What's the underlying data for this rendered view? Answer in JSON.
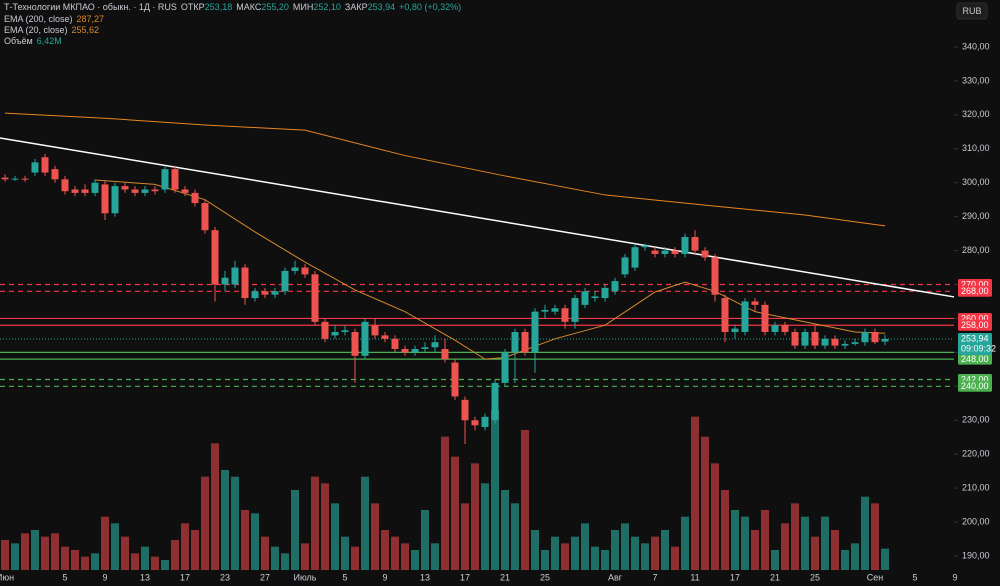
{
  "chart_data": {
    "type": "candlestick",
    "header": {
      "symbol": "Т-Технологии МКПАО · обыкн. · 1Д · RUS",
      "open_label": "ОТКР",
      "open": "253,18",
      "high_label": "МАКС",
      "high": "255,20",
      "low_label": "МИН",
      "low": "252,10",
      "close_label": "ЗАКР",
      "close": "253,94",
      "change": "+0,80 (+0,32%)"
    },
    "currency": "RUB",
    "categories": [
      "Июн",
      null,
      null,
      null,
      null,
      null,
      "5",
      null,
      null,
      null,
      "9",
      null,
      null,
      null,
      "13",
      null,
      null,
      null,
      "17",
      null,
      null,
      null,
      "23",
      null,
      null,
      null,
      "27",
      null,
      null,
      null,
      "Июль",
      null,
      null,
      null,
      "5",
      null,
      null,
      null,
      "9",
      null,
      null,
      null,
      "13",
      null,
      null,
      null,
      "17",
      null,
      null,
      null,
      "21",
      null,
      null,
      null,
      "25",
      null,
      null,
      null,
      null,
      null,
      null,
      "Авг",
      null,
      null,
      null,
      "7",
      null,
      null,
      null,
      "11",
      null,
      null,
      null,
      "17",
      null,
      null,
      null,
      "21",
      null,
      null,
      null,
      "25",
      null,
      null,
      null,
      null,
      null,
      "Сен",
      null,
      null,
      null,
      "5",
      null,
      null,
      null,
      "9"
    ],
    "open": [
      301.5,
      301,
      301.2,
      303,
      307.5,
      304,
      301,
      298,
      298,
      297,
      299.5,
      291,
      299,
      298,
      297,
      298,
      298,
      304,
      298,
      297,
      294,
      286,
      270,
      270,
      275,
      266,
      268,
      267,
      268,
      274,
      275,
      273,
      259,
      255,
      256,
      256,
      249,
      258,
      255,
      254,
      251,
      250,
      251,
      251.5,
      251,
      247,
      236,
      230,
      228,
      230,
      241,
      250,
      256,
      250,
      262,
      262,
      263,
      259,
      264,
      266,
      266,
      268,
      273,
      275,
      281,
      280,
      279,
      280,
      279,
      284,
      280,
      278,
      266,
      256,
      256,
      265,
      264,
      256,
      258,
      256,
      252,
      256,
      252,
      254,
      252,
      252.5,
      253,
      256,
      253.18,
      null,
      null,
      null,
      null,
      null,
      null,
      null
    ],
    "high": [
      302.5,
      302,
      302,
      307,
      308.5,
      305,
      302,
      299,
      299.5,
      301,
      300.5,
      300,
      300,
      299,
      299,
      299,
      305,
      305,
      299,
      298,
      295,
      287,
      274,
      277,
      276,
      269,
      269,
      269,
      275,
      277,
      276,
      274,
      260,
      258,
      258,
      257,
      260,
      260,
      256,
      255,
      252,
      252,
      253,
      255,
      254,
      248,
      237,
      231,
      232,
      242,
      251,
      257,
      257,
      263,
      264,
      264,
      264,
      267,
      269,
      268,
      270,
      272,
      279,
      282,
      282,
      281,
      281,
      281,
      285,
      286,
      281,
      279,
      267,
      258,
      266,
      266,
      265,
      259,
      259,
      257,
      257,
      258,
      255,
      255,
      253.5,
      254,
      257,
      257,
      255.2,
      null,
      null,
      null,
      null,
      null,
      null,
      null
    ],
    "low": [
      300.3,
      300.5,
      300.3,
      302,
      302,
      300,
      296.5,
      296,
      296,
      296,
      289,
      290,
      297,
      296,
      296,
      296.5,
      297,
      297,
      296,
      293,
      285,
      265,
      268,
      269,
      264,
      265,
      266,
      266,
      267,
      273,
      272,
      258,
      253,
      254,
      255,
      241,
      248,
      254,
      253,
      250,
      249,
      249,
      250,
      250,
      247,
      236,
      223,
      227,
      227,
      229,
      240,
      241,
      249,
      244,
      260,
      261,
      257,
      257,
      263,
      265,
      265,
      267,
      272,
      274,
      280,
      278,
      278,
      278,
      278,
      279,
      277,
      265,
      253,
      254,
      255,
      262,
      255,
      255,
      255,
      251,
      251,
      251,
      251,
      251,
      251,
      252,
      252,
      252.5,
      252.1,
      null,
      null,
      null,
      null,
      null,
      null,
      null
    ],
    "close": [
      301,
      301.2,
      301,
      306,
      303,
      301,
      297.5,
      297,
      297,
      300,
      291,
      299,
      298,
      297,
      298,
      297.5,
      304,
      298,
      297,
      294,
      286,
      270,
      272,
      275,
      266,
      268,
      267,
      268,
      274,
      275,
      273,
      259,
      254,
      256,
      256.5,
      249,
      259,
      255,
      254,
      251,
      250,
      251,
      251.5,
      253,
      248,
      237,
      230,
      228.5,
      231,
      241,
      250,
      256,
      250,
      262,
      262.5,
      263,
      259,
      266,
      268,
      266.5,
      269,
      271,
      278,
      281,
      281.5,
      279,
      280,
      279,
      284,
      280,
      278,
      267,
      256,
      257,
      265,
      264,
      256,
      258,
      256,
      252,
      256,
      252,
      254,
      252,
      252.5,
      253,
      256,
      253,
      253.94,
      null,
      null,
      null,
      null,
      null,
      null,
      null
    ],
    "up_color": "#26a69a",
    "down_color": "#ef5350",
    "volume": {
      "name": "Объём",
      "value_label": "6,42M",
      "vlim": [
        0,
        60
      ],
      "values": [
        9,
        8,
        11,
        12,
        10,
        11,
        7,
        6,
        4,
        5,
        16,
        14,
        10,
        5,
        7,
        4,
        3,
        9,
        14,
        12,
        28,
        38,
        30,
        28,
        18,
        17,
        10,
        7,
        5,
        24,
        8,
        28,
        26,
        20,
        10,
        7,
        28,
        20,
        12,
        10,
        8,
        6,
        18,
        8,
        40,
        34,
        20,
        32,
        26,
        48,
        24,
        20,
        42,
        12,
        6,
        10,
        8,
        10,
        14,
        7,
        6,
        12,
        14,
        10,
        8,
        10,
        12,
        7,
        16,
        46,
        40,
        32,
        24,
        18,
        16,
        12,
        18,
        6,
        14,
        20,
        16,
        10,
        16,
        12,
        6,
        8,
        22,
        20,
        6.42,
        null,
        null,
        null,
        null,
        null,
        null,
        null
      ],
      "up_color": "#1f6e66",
      "down_color": "#8e2f31"
    },
    "indicators": [
      {
        "name": "EMA (200, close)",
        "value_label": "287,27",
        "color": "#e8861f",
        "x": [
          0,
          10,
          20,
          30,
          40,
          50,
          60,
          70,
          80,
          88
        ],
        "values": [
          320.5,
          319,
          317,
          315.5,
          308,
          302,
          296.4,
          293.4,
          290.5,
          287.27
        ]
      },
      {
        "name": "EMA (20, close)",
        "value_label": "255,62",
        "color": "#d7892f",
        "x": [
          9,
          15,
          20,
          25,
          30,
          35,
          40,
          45,
          48,
          50,
          55,
          60,
          65,
          68,
          71,
          75,
          80,
          85,
          88
        ],
        "values": [
          300.8,
          299.5,
          295,
          285.5,
          276.6,
          268.4,
          262,
          253.6,
          248,
          248.5,
          254,
          258,
          267.8,
          270.7,
          268,
          262,
          259,
          256,
          255.62
        ]
      }
    ],
    "trendline": {
      "x": [
        -0.5,
        95
      ],
      "values": [
        313.2,
        266.3
      ],
      "color": "#ffffff"
    },
    "levels": [
      {
        "value": 270,
        "label": "270,00",
        "color": "#f23645",
        "dashed": true
      },
      {
        "value": 268,
        "label": "268,00",
        "color": "#f23645",
        "dashed": true
      },
      {
        "value": 260,
        "label": "260,00",
        "color": "#f23645",
        "dashed": false
      },
      {
        "value": 258,
        "label": "258,00",
        "color": "#f23645",
        "dashed": false
      },
      {
        "value": 250,
        "label": "250,00",
        "color": "#4caf50",
        "dashed": false
      },
      {
        "value": 248,
        "label": "248,00",
        "color": "#4caf50",
        "dashed": false
      },
      {
        "value": 242,
        "label": "242,00",
        "color": "#4caf50",
        "dashed": true
      },
      {
        "value": 240,
        "label": "240,00",
        "color": "#4caf50",
        "dashed": true
      }
    ],
    "last_price": {
      "value": 253.94,
      "label": "253,94",
      "timer": "09:09:32",
      "color": "#26a69a"
    },
    "ylim": [
      185.86,
      353.85
    ],
    "yticks": [
      {
        "value": 190,
        "label": "190,00"
      },
      {
        "value": 200,
        "label": "200,00"
      },
      {
        "value": 210,
        "label": "210,00"
      },
      {
        "value": 220,
        "label": "220,00"
      },
      {
        "value": 230,
        "label": "230,00"
      },
      {
        "value": 240,
        "label": "240,00"
      },
      {
        "value": 250,
        "label": "250,00"
      },
      {
        "value": 260,
        "label": "260,00"
      },
      {
        "value": 270,
        "label": "270,00"
      },
      {
        "value": 280,
        "label": "280,00"
      },
      {
        "value": 290,
        "label": "290,00"
      },
      {
        "value": 300,
        "label": "300,00"
      },
      {
        "value": 310,
        "label": "310,00"
      },
      {
        "value": 320,
        "label": "320,00"
      },
      {
        "value": 330,
        "label": "330,00"
      },
      {
        "value": 340,
        "label": "340,00"
      }
    ],
    "grid": false
  }
}
